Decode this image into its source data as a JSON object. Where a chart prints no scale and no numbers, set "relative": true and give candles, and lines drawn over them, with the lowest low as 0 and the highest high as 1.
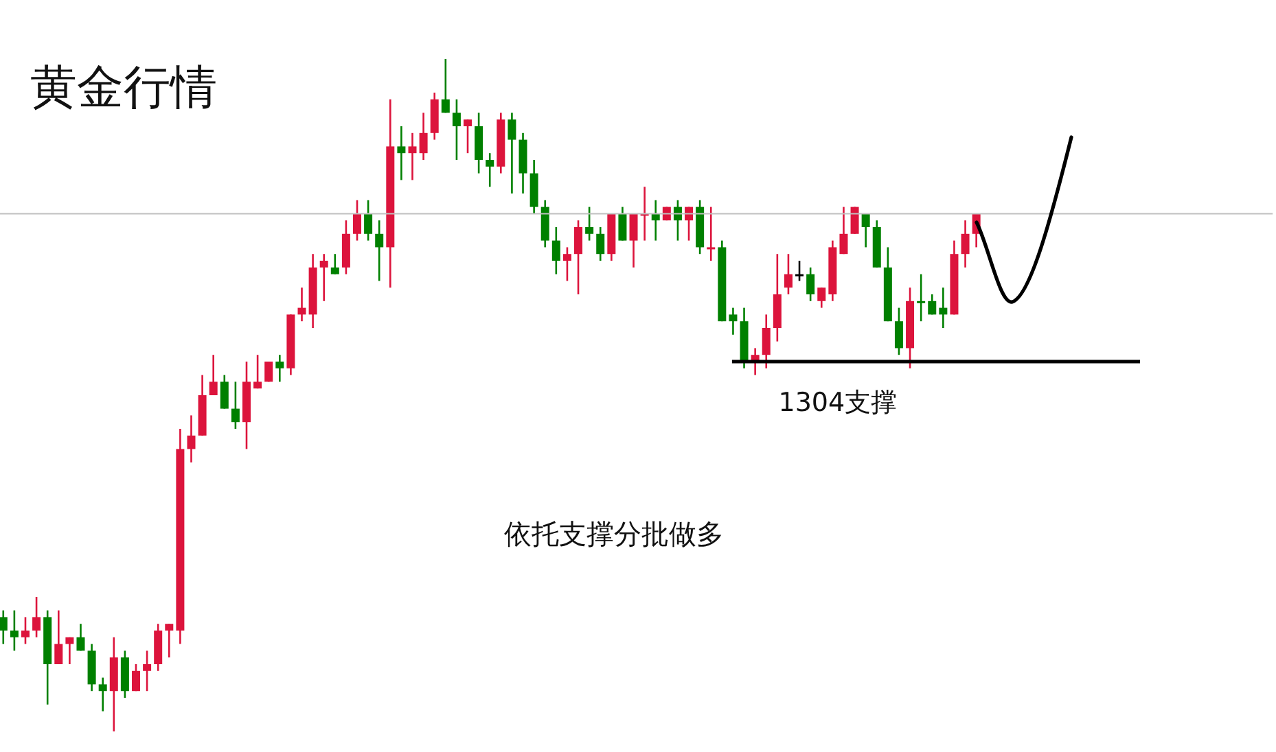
{
  "chart_data": {
    "type": "candlestick",
    "title": "黄金行情",
    "relative": true,
    "categories": [
      null,
      null,
      null,
      null,
      null,
      null,
      null,
      null,
      null,
      null,
      null,
      null,
      null,
      null,
      null,
      null,
      null,
      null,
      null,
      null,
      null,
      null,
      null,
      null,
      null,
      null,
      null,
      null,
      null,
      null,
      null,
      null,
      null,
      null,
      null,
      null,
      null,
      null,
      null,
      null,
      null,
      null,
      null,
      null,
      null,
      null,
      null,
      null,
      null,
      null,
      null,
      null,
      null,
      null,
      null,
      null,
      null,
      null,
      null,
      null,
      null,
      null,
      null,
      null,
      null,
      null,
      null,
      null,
      null,
      null,
      null,
      null,
      null,
      null,
      null,
      null,
      null,
      null,
      null,
      null,
      null,
      null,
      null,
      null,
      null,
      null,
      null,
      null,
      null
    ],
    "ohlc": [
      [
        0.17,
        0.18,
        0.13,
        0.15
      ],
      [
        0.15,
        0.18,
        0.12,
        0.14
      ],
      [
        0.14,
        0.17,
        0.13,
        0.15
      ],
      [
        0.15,
        0.2,
        0.14,
        0.17
      ],
      [
        0.17,
        0.18,
        0.04,
        0.1
      ],
      [
        0.1,
        0.18,
        0.1,
        0.13
      ],
      [
        0.13,
        0.14,
        0.1,
        0.14
      ],
      [
        0.14,
        0.16,
        0.12,
        0.12
      ],
      [
        0.12,
        0.13,
        0.06,
        0.07
      ],
      [
        0.07,
        0.08,
        0.03,
        0.06
      ],
      [
        0.06,
        0.14,
        0,
        0.11
      ],
      [
        0.11,
        0.12,
        0.05,
        0.06
      ],
      [
        0.06,
        0.1,
        0.06,
        0.09
      ],
      [
        0.09,
        0.12,
        0.06,
        0.1
      ],
      [
        0.1,
        0.16,
        0.09,
        0.15
      ],
      [
        0.15,
        0.16,
        0.11,
        0.16
      ],
      [
        0.15,
        0.45,
        0.13,
        0.42
      ],
      [
        0.42,
        0.47,
        0.4,
        0.44
      ],
      [
        0.44,
        0.53,
        0.44,
        0.5
      ],
      [
        0.5,
        0.56,
        0.5,
        0.52
      ],
      [
        0.52,
        0.53,
        0.48,
        0.48
      ],
      [
        0.48,
        0.52,
        0.45,
        0.46
      ],
      [
        0.46,
        0.55,
        0.42,
        0.52
      ],
      [
        0.51,
        0.56,
        0.51,
        0.52
      ],
      [
        0.52,
        0.55,
        0.52,
        0.55
      ],
      [
        0.55,
        0.56,
        0.52,
        0.54
      ],
      [
        0.54,
        0.62,
        0.53,
        0.62
      ],
      [
        0.62,
        0.66,
        0.61,
        0.63
      ],
      [
        0.62,
        0.71,
        0.6,
        0.69
      ],
      [
        0.69,
        0.71,
        0.64,
        0.7
      ],
      [
        0.69,
        0.71,
        0.68,
        0.68
      ],
      [
        0.69,
        0.76,
        0.68,
        0.74
      ],
      [
        0.74,
        0.79,
        0.73,
        0.77
      ],
      [
        0.77,
        0.79,
        0.73,
        0.74
      ],
      [
        0.74,
        0.76,
        0.67,
        0.72
      ],
      [
        0.72,
        0.94,
        0.66,
        0.87
      ],
      [
        0.87,
        0.9,
        0.82,
        0.86
      ],
      [
        0.86,
        0.89,
        0.82,
        0.87
      ],
      [
        0.86,
        0.92,
        0.85,
        0.89
      ],
      [
        0.89,
        0.95,
        0.88,
        0.94
      ],
      [
        0.94,
        1,
        0.92,
        0.92
      ],
      [
        0.92,
        0.94,
        0.85,
        0.9
      ],
      [
        0.9,
        0.91,
        0.86,
        0.91
      ],
      [
        0.9,
        0.92,
        0.83,
        0.85
      ],
      [
        0.85,
        0.86,
        0.81,
        0.84
      ],
      [
        0.84,
        0.92,
        0.83,
        0.91
      ],
      [
        0.91,
        0.92,
        0.8,
        0.88
      ],
      [
        0.88,
        0.89,
        0.8,
        0.83
      ],
      [
        0.83,
        0.85,
        0.77,
        0.78
      ],
      [
        0.78,
        0.79,
        0.72,
        0.73
      ],
      [
        0.73,
        0.75,
        0.68,
        0.7
      ],
      [
        0.7,
        0.72,
        0.67,
        0.71
      ],
      [
        0.71,
        0.76,
        0.65,
        0.75
      ],
      [
        0.75,
        0.78,
        0.73,
        0.74
      ],
      [
        0.74,
        0.75,
        0.7,
        0.71
      ],
      [
        0.71,
        0.77,
        0.7,
        0.77
      ],
      [
        0.77,
        0.78,
        0.73,
        0.73
      ],
      [
        0.73,
        0.77,
        0.69,
        0.77
      ],
      [
        0.77,
        0.81,
        0.73,
        0.77
      ],
      [
        0.77,
        0.79,
        0.73,
        0.76
      ],
      [
        0.76,
        0.78,
        0.76,
        0.78
      ],
      [
        0.78,
        0.79,
        0.73,
        0.76
      ],
      [
        0.76,
        0.78,
        0.73,
        0.78
      ],
      [
        0.78,
        0.79,
        0.71,
        0.72
      ],
      [
        0.72,
        0.78,
        0.7,
        0.72
      ],
      [
        0.72,
        0.73,
        0.61,
        0.61
      ],
      [
        0.62,
        0.63,
        0.59,
        0.61
      ],
      [
        0.61,
        0.63,
        0.54,
        0.55
      ],
      [
        0.55,
        0.57,
        0.53,
        0.56
      ],
      [
        0.56,
        0.62,
        0.54,
        0.6
      ],
      [
        0.6,
        0.71,
        0.58,
        0.65
      ],
      [
        0.66,
        0.71,
        0.65,
        0.68
      ],
      [
        0.68,
        0.7,
        0.67,
        0.68
      ],
      [
        0.68,
        0.69,
        0.64,
        0.65
      ],
      [
        0.64,
        0.66,
        0.63,
        0.66
      ],
      [
        0.65,
        0.73,
        0.64,
        0.72
      ],
      [
        0.71,
        0.78,
        0.71,
        0.74
      ],
      [
        0.74,
        0.78,
        0.74,
        0.78
      ],
      [
        0.77,
        0.77,
        0.72,
        0.75
      ],
      [
        0.75,
        0.76,
        0.69,
        0.69
      ],
      [
        0.69,
        0.72,
        0.61,
        0.61
      ],
      [
        0.61,
        0.63,
        0.56,
        0.57
      ],
      [
        0.57,
        0.66,
        0.54,
        0.64
      ],
      [
        0.64,
        0.68,
        0.61,
        0.64
      ],
      [
        0.64,
        0.65,
        0.62,
        0.62
      ],
      [
        0.63,
        0.66,
        0.6,
        0.62
      ],
      [
        0.62,
        0.73,
        0.62,
        0.71
      ],
      [
        0.71,
        0.76,
        0.69,
        0.74
      ],
      [
        0.74,
        0.77,
        0.72,
        0.77
      ]
    ],
    "colors": [
      "#008000",
      "#008000",
      "#dc143c",
      "#dc143c",
      "#008000",
      "#dc143c",
      "#dc143c",
      "#008000",
      "#008000",
      "#008000",
      "#dc143c",
      "#008000",
      "#dc143c",
      "#dc143c",
      "#dc143c",
      "#dc143c",
      "#dc143c",
      "#dc143c",
      "#dc143c",
      "#dc143c",
      "#008000",
      "#008000",
      "#dc143c",
      "#dc143c",
      "#dc143c",
      "#008000",
      "#dc143c",
      "#dc143c",
      "#dc143c",
      "#dc143c",
      "#008000",
      "#dc143c",
      "#dc143c",
      "#008000",
      "#008000",
      "#dc143c",
      "#008000",
      "#dc143c",
      "#dc143c",
      "#dc143c",
      "#008000",
      "#008000",
      "#dc143c",
      "#008000",
      "#008000",
      "#dc143c",
      "#008000",
      "#008000",
      "#008000",
      "#008000",
      "#008000",
      "#dc143c",
      "#dc143c",
      "#008000",
      "#008000",
      "#dc143c",
      "#008000",
      "#dc143c",
      "#dc143c",
      "#008000",
      "#dc143c",
      "#008000",
      "#dc143c",
      "#008000",
      "#dc143c",
      "#008000",
      "#008000",
      "#008000",
      "#dc143c",
      "#dc143c",
      "#dc143c",
      "#dc143c",
      "#000000",
      "#008000",
      "#dc143c",
      "#dc143c",
      "#dc143c",
      "#dc143c",
      "#008000",
      "#008000",
      "#008000",
      "#008000",
      "#dc143c",
      "#008000",
      "#008000",
      "#008000",
      "#dc143c",
      "#dc143c",
      "#dc143c"
    ],
    "ref_lines": [
      {
        "axis": "y",
        "value": 0.77,
        "color": "#c0c0c0"
      },
      {
        "axis": "y",
        "value": 0.55,
        "label": "1304支撑",
        "color": "#000000"
      }
    ],
    "annotations": [
      "依托支撑分批做多"
    ],
    "grid": false,
    "legend": false
  }
}
